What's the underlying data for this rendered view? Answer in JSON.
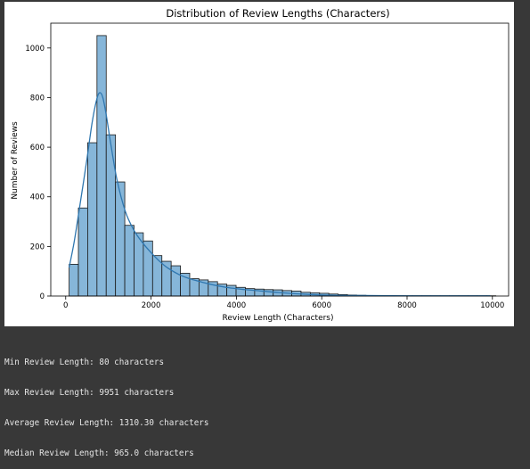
{
  "chart_data": {
    "type": "bar",
    "title": "Distribution of Review Lengths (Characters)",
    "xlabel": "Review Length (Characters)",
    "ylabel": "Number of Reviews",
    "xlim": [
      -350,
      10380
    ],
    "ylim": [
      0,
      1100
    ],
    "xticks": [
      0,
      2000,
      4000,
      6000,
      8000,
      10000
    ],
    "yticks": [
      0,
      200,
      400,
      600,
      800,
      1000
    ],
    "bin_width": 217.4,
    "bins_start": 80,
    "values": [
      128,
      355,
      618,
      1050,
      650,
      460,
      285,
      255,
      222,
      163,
      140,
      122,
      92,
      70,
      65,
      58,
      48,
      43,
      35,
      30,
      28,
      26,
      25,
      22,
      20,
      15,
      13,
      11,
      8,
      6,
      4,
      3,
      2,
      2,
      2,
      1,
      1,
      1,
      1,
      1,
      1,
      1,
      1,
      1,
      1,
      1
    ],
    "kde": {
      "name": "KDE",
      "x": [
        80,
        200,
        350,
        500,
        620,
        730,
        800,
        870,
        950,
        1050,
        1200,
        1400,
        1600,
        1800,
        2000,
        2200,
        2400,
        2700,
        3000,
        3400,
        3800,
        4200,
        4600,
        5000,
        5500,
        6000,
        6500,
        7000,
        8000,
        9000,
        9951
      ],
      "y": [
        115,
        220,
        385,
        555,
        700,
        795,
        820,
        800,
        730,
        620,
        470,
        340,
        265,
        215,
        175,
        140,
        112,
        83,
        65,
        47,
        34,
        26,
        20,
        14,
        8,
        4,
        2,
        2,
        1,
        1,
        1
      ]
    },
    "bar_color": "#86b6d9",
    "bar_edge": "#1a1a1a",
    "line_color": "#2f77b0",
    "grid": false,
    "legend": "none"
  },
  "console": {
    "lines": [
      "Min Review Length: 80 characters",
      "Max Review Length: 9951 characters",
      "Average Review Length: 1310.30 characters",
      "Median Review Length: 965.0 characters"
    ]
  }
}
